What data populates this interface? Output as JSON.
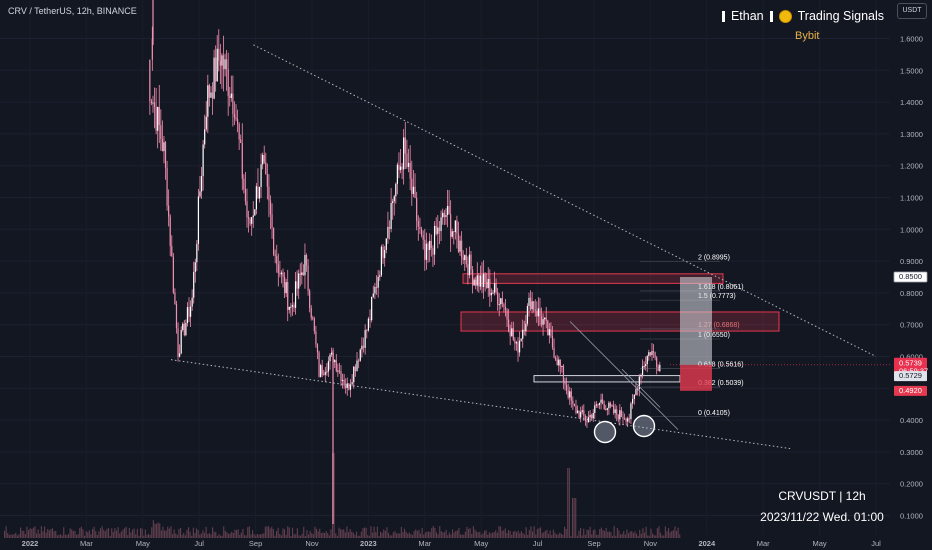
{
  "header": {
    "symbol": "CRV / TetherUS, 12h, BINANCE",
    "unit": "USDT",
    "brand_name": "Ethan",
    "brand_tagline": "Trading Signals",
    "exchange": "Bybit"
  },
  "footer": {
    "pair_timeframe": "CRVUSDT | 12h",
    "datetime": "2023/11/22 Wed. 01:00"
  },
  "chart_data": {
    "type": "candlestick",
    "title": "",
    "x_axis": {
      "tick_labels": [
        "2022",
        "Mar",
        "May",
        "Jul",
        "Sep",
        "Nov",
        "2023",
        "Mar",
        "May",
        "Jul",
        "Sep",
        "Nov",
        "2024",
        "Mar",
        "May",
        "Jul"
      ],
      "tick_dates": [
        "2022-01",
        "2022-03",
        "2022-05",
        "2022-07",
        "2022-09",
        "2022-11",
        "2023-01",
        "2023-03",
        "2023-05",
        "2023-07",
        "2023-09",
        "2023-11",
        "2024-01",
        "2024-03",
        "2024-05",
        "2024-07"
      ]
    },
    "y_axis": {
      "tick_labels": [
        "1.6000",
        "1.5000",
        "1.4000",
        "1.3000",
        "1.2000",
        "1.1000",
        "1.0000",
        "0.9000",
        "0.8000",
        "0.7000",
        "0.6000",
        "0.5000",
        "0.4000",
        "0.3000",
        "0.2000",
        "0.1000"
      ],
      "range": [
        0.08,
        1.66
      ]
    },
    "price_path": [
      [
        "2022-05",
        1.6
      ],
      [
        "2022-05",
        1.45
      ],
      [
        "2022-06",
        1.25
      ],
      [
        "2022-06",
        0.62
      ],
      [
        "2022-07",
        0.78
      ],
      [
        "2022-07",
        1.4
      ],
      [
        "2022-08",
        1.55
      ],
      [
        "2022-08",
        1.4
      ],
      [
        "2022-09",
        1.0
      ],
      [
        "2022-09",
        1.2
      ],
      [
        "2022-10",
        0.9
      ],
      [
        "2022-10",
        0.75
      ],
      [
        "2022-11",
        0.9
      ],
      [
        "2022-11",
        0.55
      ],
      [
        "2022-12",
        0.6
      ],
      [
        "2022-12",
        0.5
      ],
      [
        "2023-01",
        0.7
      ],
      [
        "2023-02",
        1.05
      ],
      [
        "2023-02",
        1.25
      ],
      [
        "2023-03",
        0.9
      ],
      [
        "2023-04",
        1.05
      ],
      [
        "2023-04",
        0.95
      ],
      [
        "2023-05",
        0.85
      ],
      [
        "2023-05",
        0.82
      ],
      [
        "2023-06",
        0.78
      ],
      [
        "2023-06",
        0.62
      ],
      [
        "2023-07",
        0.78
      ],
      [
        "2023-07",
        0.7
      ],
      [
        "2023-08",
        0.58
      ],
      [
        "2023-08",
        0.44
      ],
      [
        "2023-09",
        0.4
      ],
      [
        "2023-09",
        0.46
      ],
      [
        "2023-10",
        0.42
      ],
      [
        "2023-10",
        0.41
      ],
      [
        "2023-11",
        0.56
      ],
      [
        "2023-11",
        0.62
      ],
      [
        "2023-11",
        0.5739
      ]
    ],
    "trendlines": [
      {
        "from": [
          "2022-08",
          1.58
        ],
        "to": [
          "2024-07",
          0.6
        ]
      },
      {
        "from": [
          "2022-06",
          0.59
        ],
        "to": [
          "2024-04",
          0.31
        ]
      }
    ],
    "fibonacci": [
      {
        "level": "2",
        "price": 0.8995
      },
      {
        "level": "1.618",
        "price": 0.8061
      },
      {
        "level": "1.5",
        "price": 0.7773
      },
      {
        "level": "1.27",
        "price": 0.6868
      },
      {
        "level": "1",
        "price": 0.655
      },
      {
        "level": "0.618",
        "price": 0.5616
      },
      {
        "level": "0.382",
        "price": 0.5039
      },
      {
        "level": "0",
        "price": 0.4105
      }
    ],
    "zones": [
      {
        "kind": "resistance",
        "from": 0.83,
        "to": 0.86
      },
      {
        "kind": "resistance",
        "from": 0.68,
        "to": 0.74
      },
      {
        "kind": "support",
        "from": 0.52,
        "to": 0.54
      }
    ],
    "price_labels": [
      {
        "value": "0.8500",
        "kind": "target"
      },
      {
        "value": "0.5739",
        "kind": "last"
      },
      {
        "value": "06:59:37",
        "kind": "countdown"
      },
      {
        "value": "0.5729",
        "kind": "entry"
      },
      {
        "value": "0.4920",
        "kind": "stop"
      }
    ],
    "colors": {
      "background": "#131722",
      "candle": "#f48fb1",
      "zone_red": "#e53950",
      "last_price": "#e8314f",
      "trendline": "#cfd3dc"
    }
  }
}
